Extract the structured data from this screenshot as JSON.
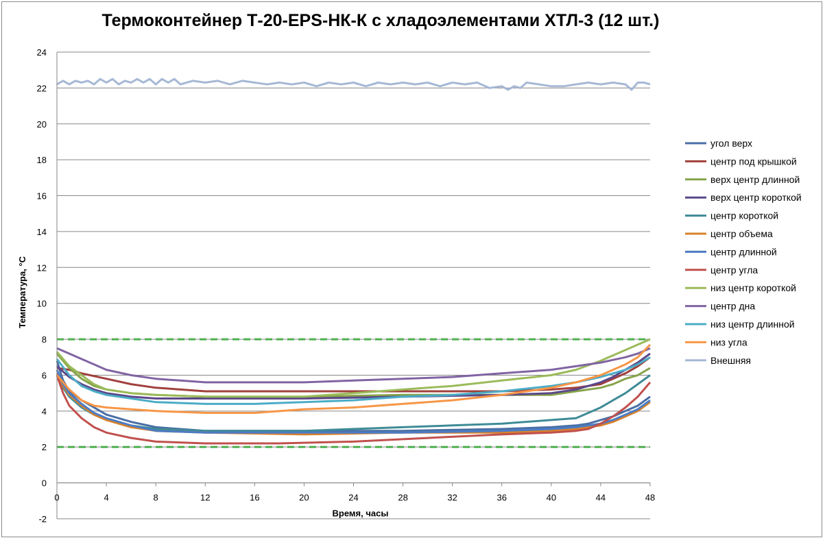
{
  "chart_data": {
    "type": "line",
    "title": "Термоконтейнер Т-20-EPS-НК-К с хладоэлементами ХТЛ-3 (12 шт.)",
    "xlabel": "Время, часы",
    "ylabel": "Температура, °С",
    "xlim": [
      0,
      48
    ],
    "ylim": [
      -2,
      24
    ],
    "x_ticks": [
      0,
      4,
      8,
      12,
      16,
      20,
      24,
      28,
      32,
      36,
      40,
      44,
      48
    ],
    "y_ticks": [
      -2,
      0,
      2,
      4,
      6,
      8,
      10,
      12,
      14,
      16,
      18,
      20,
      22,
      24
    ],
    "grid": true,
    "legend_position": "right",
    "reference_lines": [
      {
        "y": 8,
        "color": "#4faf4f",
        "style": "dashed"
      },
      {
        "y": 2,
        "color": "#4faf4f",
        "style": "dashed"
      }
    ],
    "series": [
      {
        "name": "угол верх",
        "color": "#4a6fa5",
        "points": [
          [
            0,
            6.8
          ],
          [
            0.5,
            5.7
          ],
          [
            1,
            5.1
          ],
          [
            2,
            4.6
          ],
          [
            3,
            4.2
          ],
          [
            4,
            3.8
          ],
          [
            6,
            3.4
          ],
          [
            8,
            3.1
          ],
          [
            12,
            2.9
          ],
          [
            20,
            2.9
          ],
          [
            28,
            2.9
          ],
          [
            36,
            3.0
          ],
          [
            40,
            3.1
          ],
          [
            42,
            3.2
          ],
          [
            43,
            3.3
          ],
          [
            44,
            3.5
          ],
          [
            45,
            3.7
          ],
          [
            46,
            4.0
          ],
          [
            47,
            4.3
          ],
          [
            48,
            4.8
          ]
        ]
      },
      {
        "name": "центр под крышкой",
        "color": "#a0403c",
        "points": [
          [
            0,
            6.4
          ],
          [
            1,
            6.3
          ],
          [
            2,
            6.1
          ],
          [
            4,
            5.8
          ],
          [
            6,
            5.5
          ],
          [
            8,
            5.3
          ],
          [
            10,
            5.2
          ],
          [
            12,
            5.1
          ],
          [
            20,
            5.1
          ],
          [
            28,
            5.1
          ],
          [
            36,
            5.1
          ],
          [
            40,
            5.2
          ],
          [
            42,
            5.3
          ],
          [
            44,
            5.5
          ],
          [
            45,
            5.8
          ],
          [
            46,
            6.1
          ],
          [
            47,
            6.5
          ],
          [
            48,
            7.0
          ]
        ]
      },
      {
        "name": "верх центр длинной",
        "color": "#86a34a",
        "points": [
          [
            0,
            7.2
          ],
          [
            1,
            6.4
          ],
          [
            2,
            5.8
          ],
          [
            3,
            5.4
          ],
          [
            4,
            5.2
          ],
          [
            6,
            5.0
          ],
          [
            8,
            4.9
          ],
          [
            12,
            4.8
          ],
          [
            20,
            4.8
          ],
          [
            28,
            4.9
          ],
          [
            36,
            4.9
          ],
          [
            40,
            4.9
          ],
          [
            42,
            5.1
          ],
          [
            44,
            5.3
          ],
          [
            45,
            5.5
          ],
          [
            46,
            5.8
          ],
          [
            47,
            6.0
          ],
          [
            48,
            6.4
          ]
        ]
      },
      {
        "name": "верх центр короткой",
        "color": "#5b4789",
        "points": [
          [
            0,
            6.5
          ],
          [
            1,
            5.9
          ],
          [
            2,
            5.5
          ],
          [
            3,
            5.2
          ],
          [
            4,
            5.0
          ],
          [
            6,
            4.8
          ],
          [
            8,
            4.7
          ],
          [
            12,
            4.7
          ],
          [
            20,
            4.7
          ],
          [
            28,
            4.8
          ],
          [
            36,
            4.9
          ],
          [
            40,
            5.0
          ],
          [
            42,
            5.2
          ],
          [
            44,
            5.6
          ],
          [
            45,
            5.9
          ],
          [
            46,
            6.3
          ],
          [
            47,
            6.7
          ],
          [
            48,
            7.2
          ]
        ]
      },
      {
        "name": "центр короткой",
        "color": "#3e8b96",
        "points": [
          [
            0,
            6.0
          ],
          [
            0.5,
            5.3
          ],
          [
            1,
            4.8
          ],
          [
            2,
            4.2
          ],
          [
            3,
            3.8
          ],
          [
            4,
            3.5
          ],
          [
            6,
            3.2
          ],
          [
            8,
            3.0
          ],
          [
            12,
            2.9
          ],
          [
            20,
            2.9
          ],
          [
            24,
            3.0
          ],
          [
            28,
            3.1
          ],
          [
            32,
            3.2
          ],
          [
            36,
            3.3
          ],
          [
            40,
            3.5
          ],
          [
            42,
            3.6
          ],
          [
            43,
            3.9
          ],
          [
            44,
            4.2
          ],
          [
            45,
            4.6
          ],
          [
            46,
            5.0
          ],
          [
            47,
            5.5
          ],
          [
            48,
            6.0
          ]
        ]
      },
      {
        "name": "центр объема",
        "color": "#d9822b",
        "points": [
          [
            0,
            6.1
          ],
          [
            0.5,
            5.4
          ],
          [
            1,
            4.9
          ],
          [
            2,
            4.3
          ],
          [
            3,
            3.8
          ],
          [
            4,
            3.5
          ],
          [
            6,
            3.1
          ],
          [
            8,
            2.9
          ],
          [
            12,
            2.8
          ],
          [
            20,
            2.7
          ],
          [
            28,
            2.8
          ],
          [
            36,
            2.8
          ],
          [
            40,
            2.9
          ],
          [
            42,
            3.0
          ],
          [
            44,
            3.2
          ],
          [
            45,
            3.4
          ],
          [
            46,
            3.7
          ],
          [
            47,
            4.0
          ],
          [
            48,
            4.5
          ]
        ]
      },
      {
        "name": "центр длинной",
        "color": "#4c7cc4",
        "points": [
          [
            0,
            6.3
          ],
          [
            0.5,
            5.5
          ],
          [
            1,
            5.0
          ],
          [
            2,
            4.4
          ],
          [
            3,
            3.9
          ],
          [
            4,
            3.6
          ],
          [
            6,
            3.2
          ],
          [
            8,
            2.9
          ],
          [
            12,
            2.8
          ],
          [
            20,
            2.8
          ],
          [
            28,
            2.8
          ],
          [
            36,
            2.9
          ],
          [
            40,
            3.0
          ],
          [
            42,
            3.1
          ],
          [
            44,
            3.3
          ],
          [
            45,
            3.5
          ],
          [
            46,
            3.8
          ],
          [
            47,
            4.1
          ],
          [
            48,
            4.6
          ]
        ]
      },
      {
        "name": "центр угла",
        "color": "#c0504d",
        "points": [
          [
            0,
            6.0
          ],
          [
            0.5,
            5.0
          ],
          [
            1,
            4.3
          ],
          [
            2,
            3.6
          ],
          [
            3,
            3.1
          ],
          [
            4,
            2.8
          ],
          [
            6,
            2.5
          ],
          [
            8,
            2.3
          ],
          [
            12,
            2.2
          ],
          [
            18,
            2.2
          ],
          [
            24,
            2.3
          ],
          [
            30,
            2.5
          ],
          [
            36,
            2.7
          ],
          [
            40,
            2.8
          ],
          [
            42,
            2.9
          ],
          [
            43,
            3.0
          ],
          [
            44,
            3.3
          ],
          [
            45,
            3.7
          ],
          [
            46,
            4.2
          ],
          [
            47,
            4.8
          ],
          [
            48,
            5.6
          ]
        ]
      },
      {
        "name": "низ центр короткой",
        "color": "#9bbb59",
        "points": [
          [
            0,
            7.3
          ],
          [
            1,
            6.5
          ],
          [
            2,
            6.0
          ],
          [
            3,
            5.5
          ],
          [
            4,
            5.2
          ],
          [
            6,
            5.0
          ],
          [
            8,
            4.9
          ],
          [
            12,
            4.8
          ],
          [
            20,
            4.8
          ],
          [
            24,
            5.0
          ],
          [
            28,
            5.2
          ],
          [
            32,
            5.4
          ],
          [
            36,
            5.7
          ],
          [
            40,
            6.0
          ],
          [
            42,
            6.3
          ],
          [
            44,
            6.8
          ],
          [
            45,
            7.1
          ],
          [
            46,
            7.4
          ],
          [
            47,
            7.7
          ],
          [
            48,
            8.0
          ]
        ]
      },
      {
        "name": "центр дна",
        "color": "#8064a2",
        "points": [
          [
            0,
            7.5
          ],
          [
            1,
            7.2
          ],
          [
            2,
            6.9
          ],
          [
            3,
            6.6
          ],
          [
            4,
            6.3
          ],
          [
            6,
            6.0
          ],
          [
            8,
            5.8
          ],
          [
            10,
            5.7
          ],
          [
            12,
            5.6
          ],
          [
            20,
            5.6
          ],
          [
            24,
            5.7
          ],
          [
            28,
            5.8
          ],
          [
            32,
            5.9
          ],
          [
            36,
            6.1
          ],
          [
            40,
            6.3
          ],
          [
            42,
            6.5
          ],
          [
            44,
            6.7
          ],
          [
            46,
            7.0
          ],
          [
            47,
            7.2
          ],
          [
            48,
            7.5
          ]
        ]
      },
      {
        "name": "низ центр  длинной",
        "color": "#4bacc6",
        "points": [
          [
            0,
            6.9
          ],
          [
            1,
            6.0
          ],
          [
            2,
            5.4
          ],
          [
            3,
            5.1
          ],
          [
            4,
            4.9
          ],
          [
            6,
            4.7
          ],
          [
            8,
            4.5
          ],
          [
            12,
            4.4
          ],
          [
            16,
            4.4
          ],
          [
            20,
            4.5
          ],
          [
            24,
            4.6
          ],
          [
            28,
            4.8
          ],
          [
            32,
            4.9
          ],
          [
            36,
            5.1
          ],
          [
            40,
            5.4
          ],
          [
            42,
            5.6
          ],
          [
            44,
            5.9
          ],
          [
            46,
            6.3
          ],
          [
            47,
            6.6
          ],
          [
            48,
            7.0
          ]
        ]
      },
      {
        "name": "низ угла",
        "color": "#f79646",
        "points": [
          [
            0,
            6.0
          ],
          [
            1,
            5.2
          ],
          [
            2,
            4.6
          ],
          [
            3,
            4.3
          ],
          [
            4,
            4.2
          ],
          [
            6,
            4.1
          ],
          [
            8,
            4.0
          ],
          [
            12,
            3.9
          ],
          [
            16,
            3.9
          ],
          [
            20,
            4.1
          ],
          [
            24,
            4.2
          ],
          [
            28,
            4.4
          ],
          [
            32,
            4.6
          ],
          [
            36,
            4.9
          ],
          [
            40,
            5.3
          ],
          [
            42,
            5.6
          ],
          [
            44,
            6.0
          ],
          [
            46,
            6.6
          ],
          [
            47,
            7.0
          ],
          [
            48,
            7.7
          ]
        ]
      },
      {
        "name": "Внешняя",
        "color": "#a6b8d5",
        "points": [
          [
            0,
            22.2
          ],
          [
            0.5,
            22.4
          ],
          [
            1,
            22.2
          ],
          [
            1.5,
            22.4
          ],
          [
            2,
            22.3
          ],
          [
            2.5,
            22.4
          ],
          [
            3,
            22.2
          ],
          [
            3.5,
            22.5
          ],
          [
            4,
            22.3
          ],
          [
            4.5,
            22.5
          ],
          [
            5,
            22.2
          ],
          [
            5.5,
            22.4
          ],
          [
            6,
            22.3
          ],
          [
            6.5,
            22.5
          ],
          [
            7,
            22.3
          ],
          [
            7.5,
            22.5
          ],
          [
            8,
            22.2
          ],
          [
            8.5,
            22.5
          ],
          [
            9,
            22.3
          ],
          [
            9.5,
            22.5
          ],
          [
            10,
            22.2
          ],
          [
            11,
            22.4
          ],
          [
            12,
            22.3
          ],
          [
            13,
            22.4
          ],
          [
            14,
            22.2
          ],
          [
            15,
            22.4
          ],
          [
            16,
            22.3
          ],
          [
            17,
            22.2
          ],
          [
            18,
            22.3
          ],
          [
            19,
            22.2
          ],
          [
            20,
            22.3
          ],
          [
            21,
            22.1
          ],
          [
            22,
            22.3
          ],
          [
            23,
            22.2
          ],
          [
            24,
            22.3
          ],
          [
            25,
            22.1
          ],
          [
            26,
            22.3
          ],
          [
            27,
            22.2
          ],
          [
            28,
            22.3
          ],
          [
            29,
            22.2
          ],
          [
            30,
            22.3
          ],
          [
            31,
            22.1
          ],
          [
            32,
            22.3
          ],
          [
            33,
            22.2
          ],
          [
            34,
            22.3
          ],
          [
            35,
            22.0
          ],
          [
            36,
            22.1
          ],
          [
            36.5,
            21.9
          ],
          [
            37,
            22.1
          ],
          [
            37.5,
            22.0
          ],
          [
            38,
            22.3
          ],
          [
            39,
            22.2
          ],
          [
            40,
            22.1
          ],
          [
            41,
            22.1
          ],
          [
            42,
            22.2
          ],
          [
            43,
            22.3
          ],
          [
            44,
            22.2
          ],
          [
            45,
            22.3
          ],
          [
            46,
            22.2
          ],
          [
            46.5,
            21.9
          ],
          [
            47,
            22.3
          ],
          [
            47.5,
            22.3
          ],
          [
            48,
            22.2
          ]
        ]
      }
    ]
  }
}
